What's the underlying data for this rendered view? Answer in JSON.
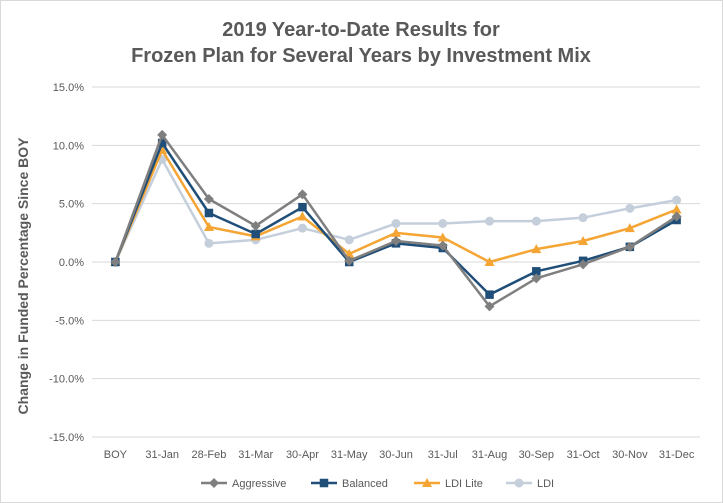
{
  "chart_data": {
    "type": "line",
    "title_lines": [
      "2019 Year-to-Date Results for",
      "Frozen Plan for Several Years by Investment Mix"
    ],
    "xlabel": "",
    "ylabel": "Change in Funded Percentage Since BOY",
    "categories": [
      "BOY",
      "31-Jan",
      "28-Feb",
      "31-Mar",
      "30-Apr",
      "31-May",
      "30-Jun",
      "31-Jul",
      "31-Aug",
      "30-Sep",
      "31-Oct",
      "30-Nov",
      "31-Dec"
    ],
    "ylim": [
      -15,
      15
    ],
    "yticks": [
      15,
      10,
      5,
      0,
      -5,
      -10,
      -15
    ],
    "ytick_labels": [
      "15.0%",
      "10.0%",
      "5.0%",
      "0.0%",
      "-5.0%",
      "-10.0%",
      "-15.0%"
    ],
    "grid": true,
    "legend_position": "bottom",
    "series": [
      {
        "name": "Aggressive",
        "color": "#7f7f7f",
        "marker": "diamond",
        "values": [
          0.0,
          10.9,
          5.4,
          3.1,
          5.8,
          0.1,
          1.8,
          1.4,
          -3.8,
          -1.4,
          -0.2,
          1.3,
          3.9
        ]
      },
      {
        "name": "Balanced",
        "color": "#1f4e79",
        "marker": "square",
        "values": [
          0.0,
          10.2,
          4.2,
          2.4,
          4.7,
          0.0,
          1.6,
          1.2,
          -2.8,
          -0.8,
          0.1,
          1.3,
          3.6
        ]
      },
      {
        "name": "LDI Lite",
        "color": "#f4a534",
        "marker": "triangle",
        "values": [
          0.0,
          9.6,
          3.0,
          2.2,
          3.9,
          0.7,
          2.5,
          2.1,
          0.0,
          1.1,
          1.8,
          2.9,
          4.5
        ]
      },
      {
        "name": "LDI",
        "color": "#c5cfdc",
        "marker": "circle",
        "values": [
          0.0,
          8.8,
          1.6,
          1.9,
          2.9,
          1.9,
          3.3,
          3.3,
          3.5,
          3.5,
          3.8,
          4.6,
          5.3
        ]
      }
    ]
  }
}
